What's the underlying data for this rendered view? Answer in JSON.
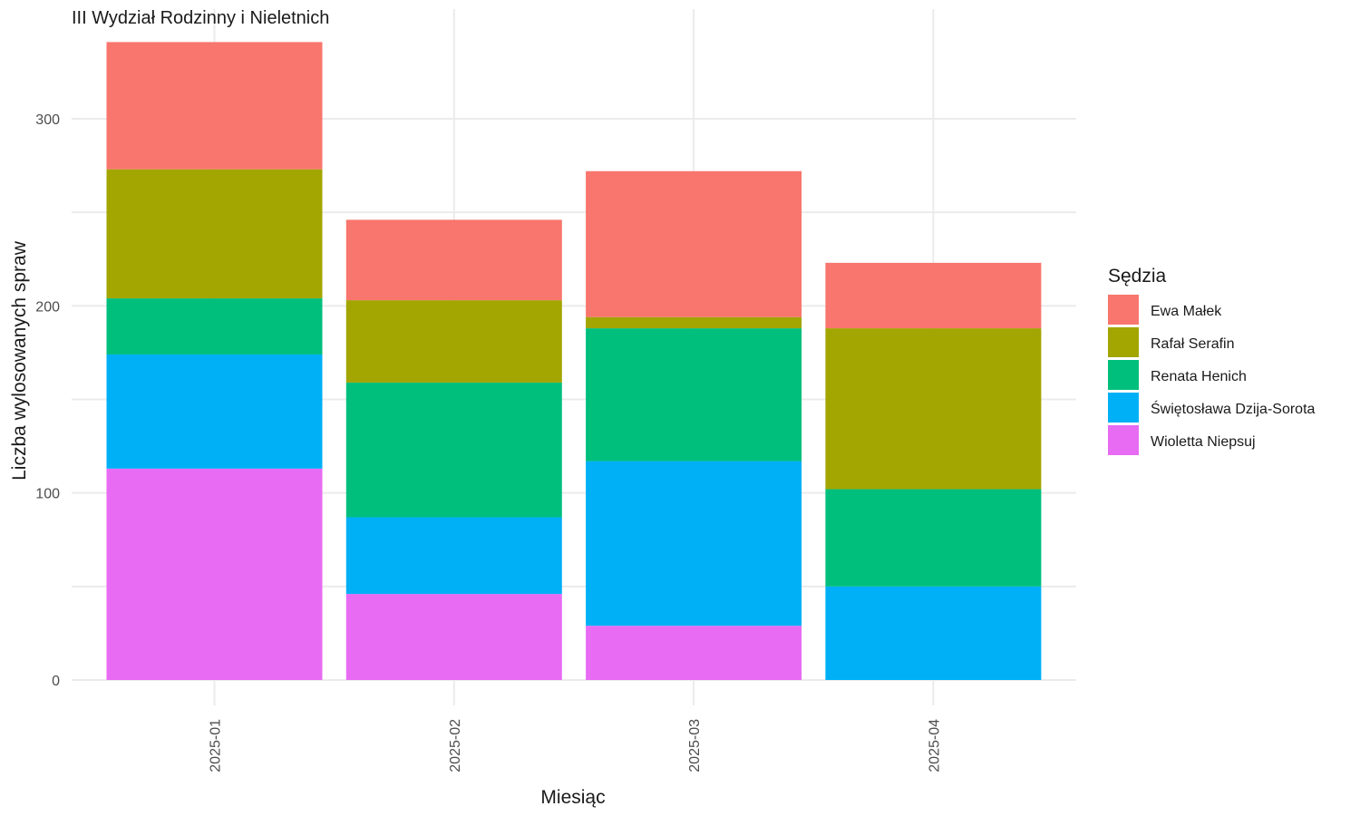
{
  "chart_data": {
    "type": "bar",
    "stacked": true,
    "title": "III Wydział Rodzinny i Nieletnich",
    "xlabel": "Miesiąc",
    "ylabel": "Liczba wylosowanych spraw",
    "categories": [
      "2025-01",
      "2025-02",
      "2025-03",
      "2025-04"
    ],
    "ylim": [
      0,
      340
    ],
    "yticks": [
      0,
      100,
      200,
      300
    ],
    "grid": true,
    "legend": {
      "title": "Sędzia",
      "position": "right"
    },
    "series": [
      {
        "name": "Wioletta Niepsuj",
        "color": "#E76BF3",
        "values": [
          113,
          46,
          29,
          0
        ]
      },
      {
        "name": "Świętosława Dzija-Sorota",
        "color": "#00B0F6",
        "values": [
          61,
          41,
          88,
          50
        ]
      },
      {
        "name": "Renata Henich",
        "color": "#00BF7D",
        "values": [
          30,
          72,
          71,
          52
        ]
      },
      {
        "name": "Rafał Serafin",
        "color": "#A3A500",
        "values": [
          69,
          44,
          6,
          86
        ]
      },
      {
        "name": "Ewa Małek",
        "color": "#F8766D",
        "values": [
          68,
          43,
          78,
          35
        ]
      }
    ],
    "legend_order": [
      "Ewa Małek",
      "Rafał Serafin",
      "Renata Henich",
      "Świętosława Dzija-Sorota",
      "Wioletta Niepsuj"
    ]
  }
}
